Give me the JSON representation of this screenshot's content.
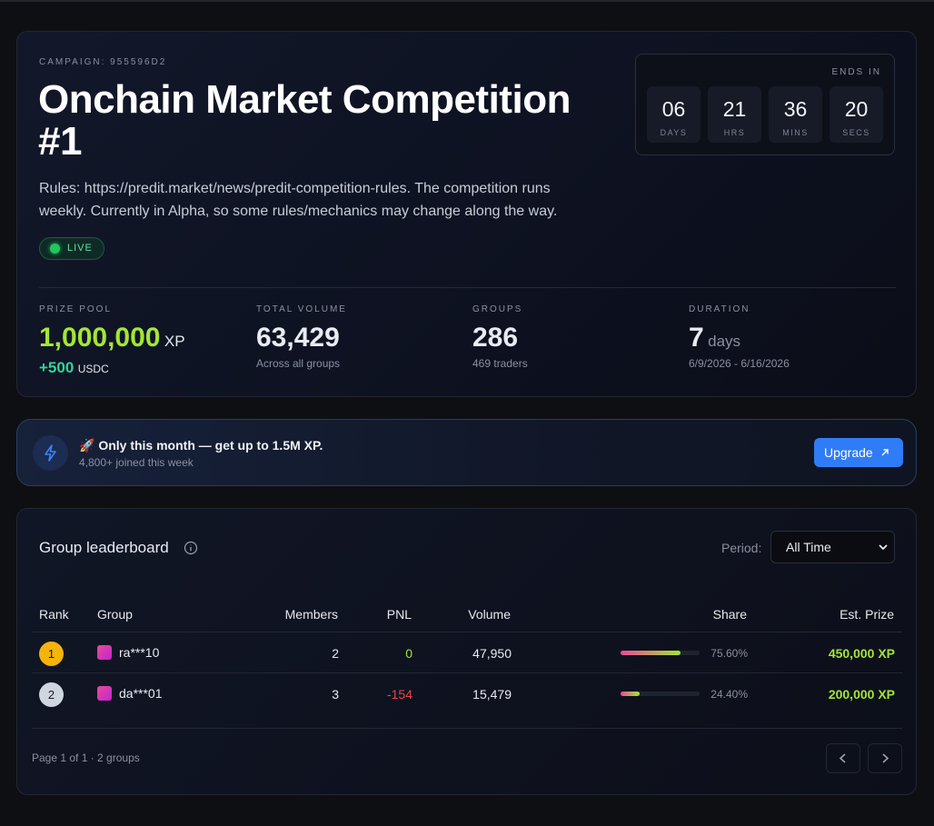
{
  "campaign": {
    "id_label": "CAMPAIGN: 955596D2",
    "title": "Onchain Market Competition #1",
    "description": "Rules: https://predit.market/news/predit-competition-rules. The competition runs weekly. Currently in Alpha, so some rules/mechanics may change along the way.",
    "status": "LIVE",
    "countdown": {
      "label": "ENDS IN",
      "units": [
        {
          "value": "06",
          "unit": "DAYS"
        },
        {
          "value": "21",
          "unit": "HRS"
        },
        {
          "value": "36",
          "unit": "MINS"
        },
        {
          "value": "20",
          "unit": "SECS"
        }
      ]
    },
    "stats": [
      {
        "label": "PRIZE POOL",
        "value": "1,000,000",
        "unit": "XP",
        "extra": "+500",
        "extra_unit": "USDC"
      },
      {
        "label": "TOTAL VOLUME",
        "value": "63,429",
        "note": "Across all groups"
      },
      {
        "label": "GROUPS",
        "value": "286",
        "note": "469 traders"
      },
      {
        "label": "DURATION",
        "value": "7",
        "unit": "days",
        "note": "6/9/2026 - 6/16/2026"
      }
    ]
  },
  "banner": {
    "text": "🚀 Only this month — get up to 1.5M XP.",
    "subtext": "4,800+ joined this week",
    "button": "Upgrade"
  },
  "leaderboard": {
    "title": "Group leaderboard",
    "period_label": "Period:",
    "period": "All Time",
    "columns": [
      "Rank",
      "Group",
      "Members",
      "PNL",
      "Volume",
      "Share",
      "Est. Prize"
    ],
    "rows": [
      {
        "rank": "1",
        "rank_color": "#f5b40b",
        "group": "ra***10",
        "members": "2",
        "pnl": "0",
        "pnl_color": "#a3e635",
        "volume": "47,950",
        "share": {
          "value": 75.6,
          "label": "75.60%"
        },
        "prize": "450,000 XP"
      },
      {
        "rank": "2",
        "rank_color": "#cfd6e0",
        "group": "da***01",
        "members": "3",
        "pnl": "-154",
        "pnl_color": "#ef4444",
        "volume": "15,479",
        "share": {
          "value": 24.4,
          "label": "24.40%"
        },
        "prize": "200,000 XP"
      }
    ],
    "footer": "Page 1 of 1 · 2 groups"
  }
}
